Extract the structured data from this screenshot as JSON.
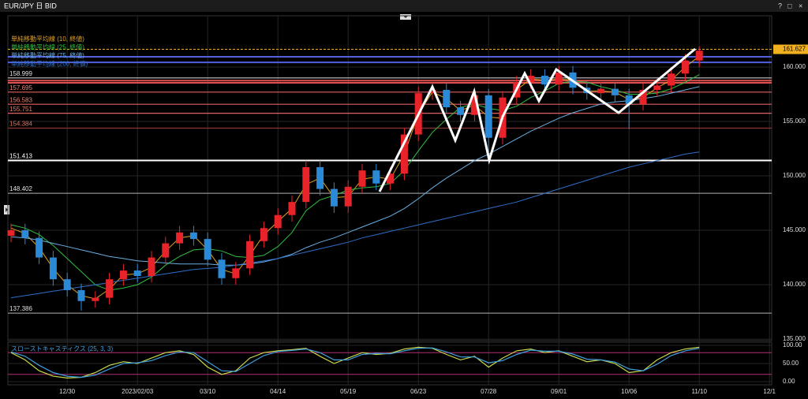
{
  "window": {
    "buttons": [
      "?",
      "□",
      "×"
    ]
  },
  "chart_data": [
    {
      "type": "candlestick",
      "title": "EUR/JPY 日 BID",
      "categories": [
        null,
        null,
        null,
        null,
        "12/30",
        null,
        null,
        null,
        null,
        "2023/02/03",
        null,
        null,
        null,
        null,
        "03/10",
        null,
        null,
        null,
        null,
        "04/14",
        null,
        null,
        null,
        null,
        "05/19",
        null,
        null,
        null,
        null,
        "06/23",
        null,
        null,
        null,
        null,
        "07/28",
        null,
        null,
        null,
        null,
        "09/01",
        null,
        null,
        null,
        null,
        "10/06",
        null,
        null,
        null,
        null,
        "11/10",
        null,
        null,
        null,
        null,
        "12/1"
      ],
      "open": [
        144.5,
        145.0,
        144.3,
        142.5,
        140.5,
        139.5,
        138.5,
        138.8,
        140.5,
        141.3,
        140.8,
        142.5,
        143.8,
        144.8,
        144.2,
        142.3,
        140.6,
        141.5,
        144.0,
        145.2,
        146.4,
        147.6,
        150.8,
        148.8,
        147.2,
        149.0,
        150.5,
        149.3,
        150.2,
        153.8,
        157.6,
        157.9,
        156.3,
        155.6,
        157.4,
        153.5,
        157.2,
        158.6,
        159.2,
        158.4,
        159.5,
        158.1,
        157.6,
        158.0,
        157.4,
        156.6,
        157.9,
        158.3,
        159.4,
        160.6,
        null,
        null,
        null,
        null,
        null
      ],
      "high": [
        145.6,
        145.6,
        144.9,
        143.1,
        141.1,
        140.1,
        139.4,
        141.1,
        141.9,
        141.9,
        143.1,
        144.4,
        145.4,
        145.4,
        144.8,
        142.9,
        142.1,
        144.6,
        145.8,
        147.0,
        148.2,
        151.4,
        151.4,
        149.4,
        149.6,
        151.1,
        151.1,
        150.8,
        154.4,
        158.2,
        158.5,
        158.5,
        156.9,
        158.0,
        158.0,
        157.8,
        159.2,
        159.8,
        159.8,
        160.1,
        160.1,
        158.7,
        158.6,
        158.6,
        158.0,
        158.5,
        158.9,
        160.0,
        161.2,
        161.9,
        null,
        null,
        null,
        null,
        null
      ],
      "low": [
        143.9,
        143.7,
        141.9,
        139.9,
        138.9,
        137.6,
        137.9,
        138.2,
        139.9,
        140.2,
        140.2,
        141.9,
        143.2,
        143.6,
        141.7,
        140.0,
        140.0,
        140.9,
        143.4,
        144.6,
        145.8,
        147.0,
        148.2,
        146.6,
        146.6,
        148.4,
        148.7,
        148.7,
        149.6,
        153.2,
        157.0,
        155.7,
        155.0,
        155.0,
        151.5,
        152.9,
        156.6,
        158.0,
        157.8,
        157.8,
        157.5,
        157.0,
        157.0,
        156.8,
        154.3,
        156.0,
        157.3,
        157.7,
        158.8,
        160.0,
        null,
        null,
        null,
        null,
        null
      ],
      "close": [
        145.0,
        144.3,
        142.5,
        140.5,
        139.5,
        138.5,
        138.8,
        140.5,
        141.3,
        140.8,
        142.5,
        143.8,
        144.8,
        144.2,
        142.3,
        140.6,
        141.5,
        144.0,
        145.2,
        146.4,
        147.6,
        150.8,
        148.8,
        147.2,
        149.0,
        150.5,
        149.3,
        150.2,
        153.8,
        157.6,
        157.9,
        156.3,
        155.6,
        157.4,
        153.5,
        157.2,
        158.6,
        159.2,
        158.4,
        159.5,
        158.1,
        157.6,
        158.0,
        157.4,
        156.6,
        157.9,
        158.3,
        159.4,
        160.6,
        161.5,
        null,
        null,
        null,
        null,
        null
      ],
      "up_color": "#e8232a",
      "down_color": "#2b8ad8",
      "series": [
        {
          "name": "単純移動平均線 (10, 終値)",
          "color": "#e0a020",
          "values": [
            145.2,
            144.7,
            143.4,
            141.5,
            140.0,
            139.0,
            138.7,
            139.6,
            140.9,
            141.0,
            141.6,
            143.1,
            144.3,
            144.5,
            143.2,
            141.4,
            141.0,
            142.7,
            144.6,
            145.8,
            147.0,
            149.2,
            149.8,
            148.0,
            148.1,
            149.7,
            149.9,
            149.7,
            152.0,
            155.7,
            157.7,
            157.1,
            156.0,
            156.5,
            155.4,
            155.3,
            157.9,
            158.9,
            158.8,
            158.9,
            158.8,
            157.8,
            157.8,
            157.7,
            157.0,
            157.2,
            158.1,
            158.8,
            160.0,
            161.0,
            null,
            null,
            null,
            null,
            null
          ]
        },
        {
          "name": "単純移動平均線 (25, 終値)",
          "color": "#30c040",
          "values": [
            145.5,
            145.2,
            144.6,
            143.6,
            142.4,
            141.2,
            140.0,
            139.5,
            139.7,
            140.0,
            140.7,
            141.8,
            142.6,
            143.2,
            143.3,
            143.1,
            142.6,
            142.5,
            142.7,
            143.5,
            144.8,
            146.8,
            147.8,
            148.2,
            148.7,
            148.9,
            149.0,
            149.3,
            150.5,
            152.3,
            154.0,
            155.2,
            156.3,
            156.6,
            156.2,
            156.0,
            156.4,
            157.2,
            157.8,
            158.5,
            158.7,
            158.6,
            158.2,
            157.9,
            157.5,
            157.5,
            157.6,
            158.0,
            158.6,
            159.3,
            null,
            null,
            null,
            null,
            null
          ]
        },
        {
          "name": "単純移動平均線 (75, 終値)",
          "color": "#6aaee0",
          "values": [
            144.4,
            144.3,
            144.1,
            143.8,
            143.5,
            143.2,
            142.9,
            142.6,
            142.4,
            142.2,
            142.1,
            142.0,
            141.9,
            141.9,
            141.9,
            141.8,
            141.8,
            141.9,
            142.1,
            142.4,
            142.8,
            143.4,
            143.9,
            144.3,
            144.8,
            145.3,
            145.8,
            146.3,
            147.0,
            147.9,
            148.9,
            149.8,
            150.6,
            151.4,
            152.0,
            152.7,
            153.4,
            154.1,
            154.7,
            155.3,
            155.8,
            156.2,
            156.6,
            156.8,
            156.9,
            157.1,
            157.3,
            157.6,
            157.9,
            158.2,
            null,
            null,
            null,
            null,
            null
          ]
        },
        {
          "name": "単純移動平均線 (200, 終値)",
          "color": "#2f70c8",
          "values": [
            138.8,
            139.0,
            139.2,
            139.4,
            139.6,
            139.8,
            140.0,
            140.2,
            140.4,
            140.6,
            140.8,
            141.0,
            141.2,
            141.4,
            141.5,
            141.6,
            141.8,
            142.0,
            142.2,
            142.4,
            142.7,
            143.0,
            143.3,
            143.6,
            143.9,
            144.3,
            144.6,
            144.9,
            145.2,
            145.5,
            145.8,
            146.1,
            146.4,
            146.7,
            147.0,
            147.3,
            147.6,
            148.0,
            148.4,
            148.8,
            149.2,
            149.6,
            150.0,
            150.4,
            150.8,
            151.1,
            151.4,
            151.7,
            152.0,
            152.2,
            null,
            null,
            null,
            null,
            null
          ]
        }
      ],
      "levels": [
        {
          "value": 158.999,
          "color": "#c8c8c8",
          "label_color": "#e0e0e0"
        },
        {
          "value": 157.695,
          "color": "#e06060",
          "label_color": "#f08070"
        },
        {
          "value": 156.583,
          "color": "#e06060",
          "label_color": "#f08070"
        },
        {
          "value": 155.751,
          "color": "#e06060",
          "label_color": "#f08070"
        },
        {
          "value": 154.384,
          "color": "#8a3535",
          "label_color": "#e07060"
        },
        {
          "value": 151.413,
          "color": "#ffffff",
          "label_color": "#ffffff"
        },
        {
          "value": 148.402,
          "color": "#909090",
          "label_color": "#e0e0e0"
        },
        {
          "value": 137.386,
          "color": "#909090",
          "label_color": "#e0e0e0"
        }
      ],
      "lines": [
        {
          "value": 160.94,
          "color": "#5060e0"
        },
        {
          "value": 160.43,
          "color": "#5060e0"
        },
        {
          "value": 158.75,
          "color": "#e05050"
        },
        {
          "value": 158.55,
          "color": "#e05050"
        }
      ],
      "last_price": 161.627,
      "last_price_color": "#f0b020",
      "ylim": [
        134.86,
        164.71
      ],
      "yticks": [
        {
          "value": 135,
          "label": "135.000"
        },
        {
          "value": 140,
          "label": "140.000"
        },
        {
          "value": 145,
          "label": "145.000"
        },
        {
          "value": 150,
          "label": "150.000"
        },
        {
          "value": 155,
          "label": "155.000"
        },
        {
          "value": 160,
          "label": "160.000"
        }
      ],
      "grid": true
    },
    {
      "type": "line",
      "title": "スローストキャスティクス (25, 3, 3)",
      "series": [
        {
          "color": "#c8d84a",
          "values": [
            80,
            60,
            30,
            15,
            10,
            12,
            25,
            45,
            55,
            50,
            65,
            80,
            85,
            75,
            40,
            20,
            30,
            65,
            80,
            85,
            88,
            92,
            70,
            50,
            65,
            80,
            75,
            78,
            90,
            95,
            92,
            75,
            60,
            70,
            40,
            65,
            85,
            90,
            80,
            85,
            70,
            55,
            60,
            50,
            25,
            30,
            60,
            80,
            90,
            95,
            null,
            null,
            null,
            null,
            null
          ]
        },
        {
          "color": "#3fa0e0",
          "values": [
            82,
            70,
            45,
            25,
            15,
            12,
            18,
            35,
            50,
            52,
            58,
            72,
            82,
            80,
            55,
            30,
            28,
            50,
            72,
            83,
            86,
            90,
            80,
            60,
            60,
            75,
            78,
            77,
            85,
            92,
            93,
            82,
            68,
            68,
            52,
            58,
            75,
            87,
            84,
            84,
            76,
            62,
            60,
            54,
            35,
            30,
            48,
            72,
            85,
            92,
            null,
            null,
            null,
            null,
            null
          ]
        }
      ],
      "levels": [
        {
          "value": 80,
          "color": "#b03070"
        },
        {
          "value": 20,
          "color": "#b03070"
        }
      ],
      "ylim": [
        0,
        100
      ],
      "yticks": [
        {
          "value": 0,
          "label": "0.00"
        },
        {
          "value": 50,
          "label": "50.00"
        },
        {
          "value": 100,
          "label": "100.00"
        }
      ]
    }
  ]
}
